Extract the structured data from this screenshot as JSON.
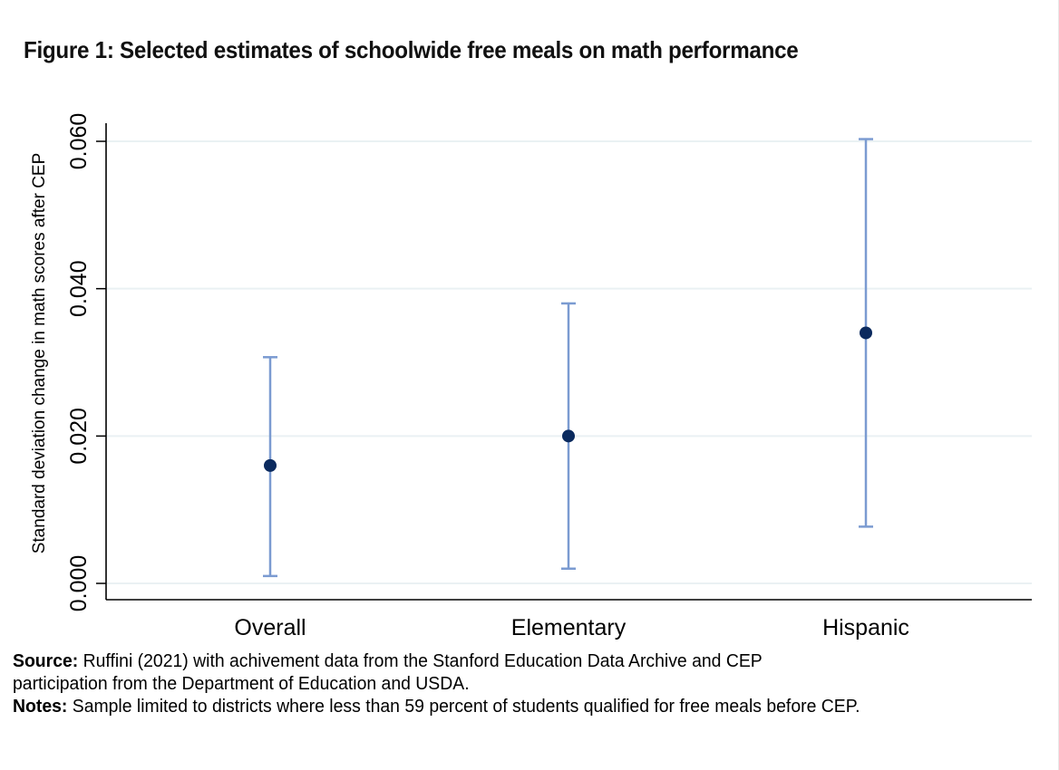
{
  "figure": {
    "title": "Figure 1: Selected estimates of schoolwide free meals on math performance",
    "source_label": "Source:",
    "source_text_line1": " Ruffini (2021) with achivement data from the Stanford Education Data Archive and CEP",
    "source_text_line2": "participation from the Department of Education and USDA.",
    "notes_label": "Notes:",
    "notes_text": " Sample limited to districts where less than 59 percent of students qualified for free meals before CEP."
  },
  "colors": {
    "point": "#0b2a5e",
    "ci": "#7b9bd1",
    "grid": "#eaf1f3",
    "axis": "#000000"
  },
  "chart_data": {
    "type": "scatter",
    "subtype": "point-estimate-with-confidence-interval",
    "title": "Figure 1: Selected estimates of schoolwide free meals on math performance",
    "xlabel": "",
    "ylabel": "Standard deviation change in math scores after CEP",
    "categories": [
      "Overall",
      "Elementary",
      "Hispanic"
    ],
    "series": [
      {
        "name": "Estimate",
        "values": [
          0.016,
          0.02,
          0.034
        ],
        "ci_lower": [
          0.001,
          0.002,
          0.0077
        ],
        "ci_upper": [
          0.0307,
          0.038,
          0.0603
        ]
      }
    ],
    "ylim": [
      -0.002,
      0.0625
    ],
    "yticks": [
      0.0,
      0.02,
      0.04,
      0.06
    ],
    "ytick_labels": [
      "0.000",
      "0.020",
      "0.040",
      "0.060"
    ],
    "grid": true,
    "legend": "none"
  }
}
